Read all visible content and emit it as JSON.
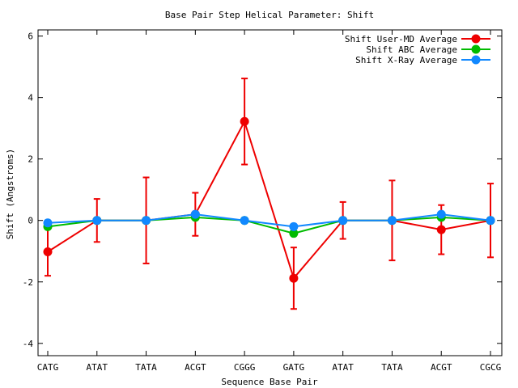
{
  "chart_data": {
    "type": "line",
    "title": "Base Pair Step Helical Parameter: Shift",
    "xlabel": "Sequence Base Pair",
    "ylabel": "Shift (Angstroms)",
    "categories": [
      "CATG",
      "ATAT",
      "TATA",
      "ACGT",
      "CGGG",
      "GATG",
      "ATAT",
      "TATA",
      "ACGT",
      "CGCG"
    ],
    "ylim": [
      -4.4,
      6.2
    ],
    "yticks": [
      -4,
      -2,
      0,
      2,
      4,
      6
    ],
    "grid": false,
    "legend_position": "top-right",
    "series": [
      {
        "name": "Shift User-MD Average",
        "color": "#ee0000",
        "values": [
          -1.02,
          0.0,
          0.0,
          0.2,
          3.22,
          -1.88,
          0.0,
          0.0,
          -0.3,
          0.0
        ],
        "error": [
          0.78,
          0.7,
          1.4,
          0.7,
          1.4,
          1.0,
          0.6,
          1.3,
          0.8,
          1.2
        ]
      },
      {
        "name": "Shift ABC Average",
        "color": "#00bb00",
        "values": [
          -0.2,
          0.0,
          0.0,
          0.1,
          0.0,
          -0.42,
          0.0,
          0.0,
          0.1,
          0.0
        ]
      },
      {
        "name": "Shift X-Ray Average",
        "color": "#1188ff",
        "values": [
          -0.08,
          0.0,
          0.0,
          0.2,
          0.0,
          -0.2,
          0.0,
          0.0,
          0.2,
          0.0
        ]
      }
    ]
  }
}
